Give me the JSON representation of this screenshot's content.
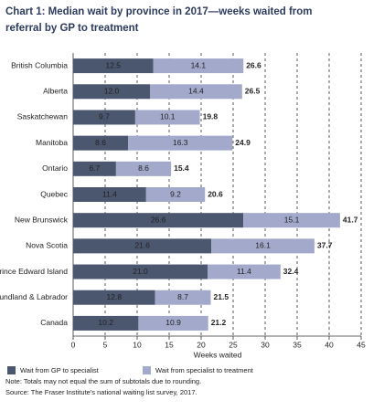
{
  "chart_data": {
    "type": "stacked-barh",
    "title": "Chart 1: Median wait by province in 2017—weeks waited from referral by GP to treatment",
    "categories": [
      "British Columbia",
      "Alberta",
      "Saskatchewan",
      "Manitoba",
      "Ontario",
      "Quebec",
      "New Brunswick",
      "Nova Scotia",
      "Prince Edward Island",
      "Newfoundland & Labrador",
      "Canada"
    ],
    "series": [
      {
        "name": "Wait from GP to specialist",
        "color": "#4b566f",
        "values": [
          12.5,
          12,
          9.7,
          8.6,
          6.7,
          11.4,
          26.6,
          21.6,
          21,
          12.8,
          10.2
        ],
        "value_labels": [
          "12.5",
          "12.0",
          "9.7",
          "8.6",
          "6.7",
          "11.4",
          "26.6",
          "21.6",
          "21.0",
          "12.8",
          "10.2"
        ]
      },
      {
        "name": "Wait from specialist to treatment",
        "color": "#a2a9cb",
        "values": [
          14.1,
          14.4,
          10.1,
          16.3,
          8.6,
          9.2,
          15.1,
          16.1,
          11.4,
          8.7,
          10.9
        ]
      }
    ],
    "totals": [
      26.6,
      26.5,
      19.8,
      24.9,
      15.4,
      20.6,
      41.7,
      37.7,
      32.4,
      21.5,
      21.2
    ],
    "xlim": [
      0,
      45
    ],
    "xticks": [
      0,
      5,
      10,
      15,
      20,
      25,
      30,
      35,
      40,
      45
    ],
    "xlabel": "Weeks waited",
    "grid": true,
    "notes": [
      "Note: Totals may not equal the sum of subtotals due to rounding.",
      "Source: The Fraser Institute's national waiting list survey, 2017."
    ]
  }
}
